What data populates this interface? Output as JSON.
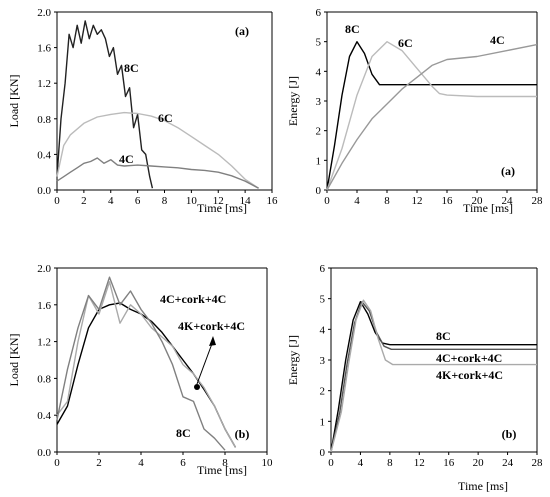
{
  "chart_data": [
    {
      "type": "line",
      "ylabel": "Load [KN]",
      "xlabel": "Time [ms]",
      "xlim": [
        0,
        16
      ],
      "ylim": [
        0,
        2.0
      ],
      "xticks": [
        "0",
        "2",
        "4",
        "6",
        "8",
        "10",
        "12",
        "14",
        "16"
      ],
      "yticks": [
        "0.0",
        "0.4",
        "0.8",
        "1.2",
        "1.6",
        "2.0"
      ],
      "panel_tag": "(a)",
      "grid": false,
      "series": [
        {
          "name": "8C",
          "color": "#222222",
          "x": [
            0,
            0.3,
            0.6,
            0.9,
            1.2,
            1.5,
            1.8,
            2.1,
            2.4,
            2.7,
            3.0,
            3.3,
            3.6,
            3.9,
            4.2,
            4.5,
            4.8,
            5.1,
            5.4,
            5.7,
            6.0,
            6.3,
            6.6,
            6.9,
            7.1
          ],
          "y": [
            0.15,
            0.8,
            1.2,
            1.75,
            1.6,
            1.85,
            1.65,
            1.9,
            1.7,
            1.85,
            1.75,
            1.8,
            1.7,
            1.5,
            1.6,
            1.3,
            1.4,
            1.05,
            1.15,
            0.7,
            0.85,
            0.45,
            0.4,
            0.15,
            0.02
          ]
        },
        {
          "name": "6C",
          "color": "#bbbbbb",
          "x": [
            0,
            0.5,
            1,
            2,
            3,
            4,
            5,
            6,
            7,
            8,
            9,
            10,
            11,
            12,
            13,
            14,
            15
          ],
          "y": [
            0.15,
            0.5,
            0.62,
            0.75,
            0.82,
            0.85,
            0.87,
            0.86,
            0.83,
            0.78,
            0.7,
            0.6,
            0.5,
            0.4,
            0.27,
            0.12,
            0.02
          ]
        },
        {
          "name": "4C",
          "color": "#808080",
          "x": [
            0,
            0.5,
            1,
            1.5,
            2,
            2.5,
            3,
            3.5,
            4,
            4.5,
            5,
            6,
            7,
            8,
            9,
            10,
            11,
            12,
            13,
            14,
            15
          ],
          "y": [
            0.1,
            0.15,
            0.2,
            0.25,
            0.3,
            0.32,
            0.36,
            0.3,
            0.34,
            0.28,
            0.27,
            0.28,
            0.27,
            0.26,
            0.25,
            0.23,
            0.22,
            0.2,
            0.16,
            0.1,
            0.02
          ]
        }
      ],
      "annotations": [
        "8C",
        "6C",
        "4C"
      ]
    },
    {
      "type": "line",
      "ylabel": "Energy [J]",
      "xlabel": "Time [ms]",
      "xlim": [
        0,
        28
      ],
      "ylim": [
        0,
        6
      ],
      "xticks": [
        "0",
        "4",
        "8",
        "12",
        "16",
        "20",
        "24",
        "28"
      ],
      "yticks": [
        "0",
        "1",
        "2",
        "3",
        "4",
        "5",
        "6"
      ],
      "panel_tag": "(a)",
      "grid": false,
      "series": [
        {
          "name": "8C",
          "color": "#000000",
          "x": [
            0,
            1,
            2,
            3,
            4,
            5,
            6,
            7,
            8,
            10,
            14,
            20,
            28
          ],
          "y": [
            0,
            1.5,
            3.2,
            4.5,
            5.0,
            4.6,
            3.9,
            3.55,
            3.55,
            3.55,
            3.55,
            3.55,
            3.55
          ]
        },
        {
          "name": "6C",
          "color": "#bbbbbb",
          "x": [
            0,
            2,
            4,
            6,
            8,
            10,
            12,
            14,
            15,
            16,
            20,
            28
          ],
          "y": [
            0,
            1.4,
            3.2,
            4.5,
            5.0,
            4.7,
            4.1,
            3.5,
            3.25,
            3.2,
            3.15,
            3.15
          ]
        },
        {
          "name": "4C",
          "color": "#999999",
          "x": [
            0,
            2,
            4,
            6,
            8,
            10,
            12,
            14,
            16,
            20,
            24,
            28
          ],
          "y": [
            0,
            0.9,
            1.7,
            2.4,
            2.9,
            3.4,
            3.8,
            4.2,
            4.4,
            4.5,
            4.7,
            4.9
          ]
        }
      ],
      "annotations": [
        "8C",
        "6C",
        "4C"
      ]
    },
    {
      "type": "line",
      "ylabel": "Load [KN]",
      "xlabel": "Time [ms]",
      "xlim": [
        0,
        10
      ],
      "ylim": [
        0,
        2.0
      ],
      "xticks": [
        "0",
        "2",
        "4",
        "6",
        "8",
        "10"
      ],
      "yticks": [
        "0.0",
        "0.4",
        "0.8",
        "1.2",
        "1.6",
        "2.0"
      ],
      "panel_tag": "(b)",
      "grid": false,
      "series": [
        {
          "name": "4C+cork+4C",
          "color": "#000000",
          "x": [
            0,
            0.5,
            1,
            1.5,
            2,
            2.5,
            3,
            3.5,
            4,
            4.5,
            5,
            5.5,
            6,
            6.5,
            7,
            7.5,
            8,
            8.5
          ],
          "y": [
            0.3,
            0.5,
            0.95,
            1.35,
            1.55,
            1.6,
            1.62,
            1.55,
            1.5,
            1.42,
            1.3,
            1.15,
            1.0,
            0.85,
            0.68,
            0.5,
            0.25,
            0.05
          ]
        },
        {
          "name": "4K+cork+4C",
          "color": "#aaaaaa",
          "x": [
            0,
            0.5,
            1,
            1.5,
            2,
            2.5,
            3,
            3.5,
            4,
            4.5,
            5,
            5.5,
            6,
            6.5,
            7,
            7.5,
            8,
            8.5
          ],
          "y": [
            0.4,
            0.55,
            1.2,
            1.7,
            1.5,
            1.85,
            1.4,
            1.6,
            1.5,
            1.35,
            1.25,
            1.15,
            0.95,
            0.85,
            0.7,
            0.5,
            0.25,
            0.05
          ]
        },
        {
          "name": "8C",
          "color": "#808080",
          "x": [
            0,
            0.5,
            1,
            1.5,
            2,
            2.5,
            3,
            3.5,
            4,
            4.5,
            5,
            5.5,
            6,
            6.5,
            7,
            7.5,
            8
          ],
          "y": [
            0.35,
            0.9,
            1.35,
            1.7,
            1.55,
            1.9,
            1.6,
            1.75,
            1.55,
            1.4,
            1.2,
            0.95,
            0.6,
            0.55,
            0.25,
            0.15,
            0.02
          ]
        }
      ],
      "annotations": [
        "4C+cork+4C",
        "4K+cork+4C",
        "8C"
      ]
    },
    {
      "type": "line",
      "ylabel": "Energy [J]",
      "xlabel": "Time [ms]",
      "xlim": [
        0,
        28
      ],
      "ylim": [
        0,
        6
      ],
      "xticks": [
        "0",
        "4",
        "8",
        "12",
        "16",
        "20",
        "24",
        "28"
      ],
      "yticks": [
        "0",
        "1",
        "2",
        "3",
        "4",
        "5",
        "6"
      ],
      "panel_tag": "(b)",
      "grid": false,
      "series": [
        {
          "name": "8C",
          "color": "#000000",
          "x": [
            0,
            1,
            2,
            3,
            4,
            5,
            6,
            7,
            8,
            10,
            14,
            20,
            28
          ],
          "y": [
            0,
            1.4,
            3.0,
            4.3,
            4.9,
            4.5,
            3.9,
            3.55,
            3.5,
            3.5,
            3.5,
            3.5,
            3.5
          ]
        },
        {
          "name": "4C+cork+4C",
          "color": "#555555",
          "x": [
            0,
            1.2,
            2.2,
            3.2,
            4.2,
            5.2,
            6.2,
            7.2,
            8.2,
            10,
            14,
            20,
            28
          ],
          "y": [
            0,
            1.3,
            2.9,
            4.2,
            4.9,
            4.6,
            3.9,
            3.45,
            3.35,
            3.35,
            3.35,
            3.35,
            3.35
          ]
        },
        {
          "name": "4K+cork+4C",
          "color": "#aaaaaa",
          "x": [
            0,
            1.4,
            2.4,
            3.4,
            4.4,
            5.4,
            6.4,
            7.4,
            8.4,
            10,
            14,
            20,
            28
          ],
          "y": [
            0,
            1.3,
            2.9,
            4.3,
            4.95,
            4.6,
            3.7,
            3.0,
            2.85,
            2.85,
            2.85,
            2.85,
            2.85
          ]
        }
      ],
      "annotations": [
        "8C",
        "4C+cork+4C",
        "4K+cork+4C"
      ]
    }
  ]
}
